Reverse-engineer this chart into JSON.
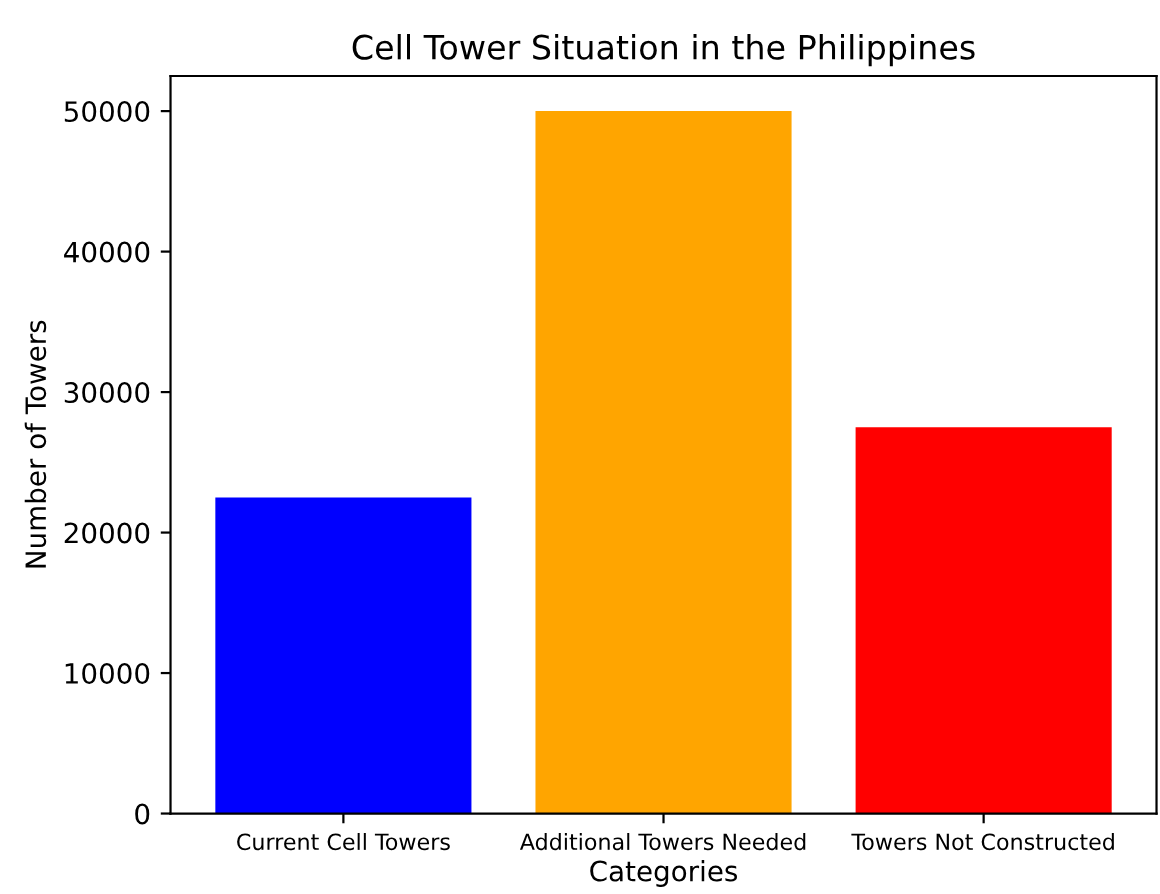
{
  "chart_data": {
    "type": "bar",
    "title": "Cell Tower Situation in the Philippines",
    "xlabel": "Categories",
    "ylabel": "Number of Towers",
    "categories": [
      "Current Cell Towers",
      "Additional Towers Needed",
      "Towers Not Constructed"
    ],
    "values": [
      22500,
      50000,
      27500
    ],
    "colors": [
      "#0000ff",
      "#ffa500",
      "#ff0000"
    ],
    "ylim": [
      0,
      52500
    ],
    "yticks": [
      0,
      10000,
      20000,
      30000,
      40000,
      50000
    ],
    "grid": false
  }
}
